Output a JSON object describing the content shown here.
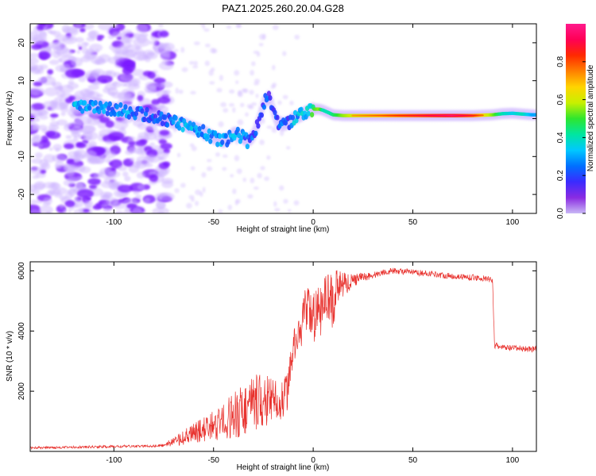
{
  "title": "PAZ1.2025.260.20.04.G28",
  "colors": {
    "snr_line": "#e8322e",
    "blob_core": "#7b1bff",
    "blob_halo": "#cbb2ff",
    "axis": "#000000",
    "colormap": [
      "#c9b8f5",
      "#8a2be2",
      "#3a2bff",
      "#0070ff",
      "#00c8ff",
      "#00e6a0",
      "#2ee62e",
      "#c8f000",
      "#ffd400",
      "#ff8000",
      "#ff2a00",
      "#ff0055",
      "#ff1a8c"
    ]
  },
  "chart_data": [
    {
      "type": "heatmap",
      "title": "",
      "xlabel": "Height of straight line (km)",
      "ylabel": "Frequency (Hz)",
      "xlim": [
        -142,
        112
      ],
      "ylim": [
        -25,
        25
      ],
      "xticks": [
        -100,
        -50,
        0,
        50,
        100
      ],
      "yticks": [
        -20,
        -10,
        0,
        10,
        20
      ],
      "grid": false,
      "colorbar": {
        "label": "Normalized spectral amplitude",
        "range": [
          0,
          1
        ],
        "ticks": [
          0.0,
          0.2,
          0.4,
          0.6,
          0.8
        ],
        "tick_labels": [
          "0.0",
          "0.2",
          "0.4",
          "0.6",
          "0.8"
        ],
        "position": "right"
      },
      "ridge": {
        "x": [
          -115,
          -105,
          -100,
          -95,
          -90,
          -85,
          -80,
          -75,
          -70,
          -65,
          -60,
          -55,
          -50,
          -45,
          -42,
          -40,
          -38,
          -35,
          -33,
          -30,
          -27,
          -25,
          -22,
          -20,
          -18,
          -15,
          -12,
          -10,
          -8,
          -6,
          -4,
          -2,
          0,
          3,
          5,
          8,
          10,
          15,
          20,
          30,
          40,
          50,
          60,
          70,
          80,
          90,
          95,
          100,
          105,
          110
        ],
        "y": [
          3,
          3,
          2.5,
          2,
          1.5,
          1,
          0.5,
          0,
          -1,
          -1.5,
          -2.5,
          -3.5,
          -5,
          -6,
          -5,
          -4,
          -4,
          -5,
          -6,
          -4.5,
          0,
          4,
          6,
          2,
          -1,
          -1.5,
          -1,
          0,
          0.5,
          1,
          1.5,
          2,
          2.5,
          2.5,
          2.2,
          1.5,
          1,
          0.8,
          0.8,
          0.8,
          0.8,
          0.8,
          0.8,
          0.8,
          0.8,
          1,
          1.3,
          1.4,
          1.2,
          1.0
        ],
        "amplitude": [
          0.3,
          0.25,
          0.25,
          0.3,
          0.25,
          0.25,
          0.2,
          0.2,
          0.25,
          0.3,
          0.3,
          0.3,
          0.25,
          0.3,
          0.25,
          0.3,
          0.25,
          0.25,
          0.25,
          0.2,
          0.2,
          0.2,
          0.2,
          0.2,
          0.2,
          0.25,
          0.2,
          0.3,
          0.3,
          0.35,
          0.3,
          0.35,
          0.5,
          0.55,
          0.4,
          0.4,
          0.45,
          0.55,
          0.6,
          0.65,
          0.7,
          0.75,
          0.8,
          0.85,
          0.75,
          0.55,
          0.4,
          0.35,
          0.4,
          0.3
        ]
      }
    },
    {
      "type": "line",
      "title": "",
      "xlabel": "Height of straight line (km)",
      "ylabel": "SNR (10 * v/v)",
      "xlim": [
        -142,
        112
      ],
      "ylim": [
        0,
        6300
      ],
      "xticks": [
        -100,
        -50,
        0,
        50,
        100
      ],
      "yticks": [
        2000,
        4000,
        6000
      ],
      "grid": false,
      "series": [
        {
          "x": [
            -142,
            -130,
            -120,
            -110,
            -100,
            -90,
            -80,
            -75,
            -70,
            -65,
            -60,
            -55,
            -50,
            -45,
            -40,
            -35,
            -30,
            -25,
            -22,
            -20,
            -18,
            -15,
            -13,
            -11,
            -10,
            -8,
            -6,
            -4,
            -2,
            0,
            2,
            4,
            6,
            8,
            10,
            12,
            14,
            16,
            18,
            20,
            25,
            30,
            35,
            40,
            45,
            50,
            55,
            60,
            65,
            70,
            75,
            80,
            85,
            88,
            90,
            91,
            92,
            95,
            100,
            105,
            110,
            112
          ],
          "y": [
            120,
            130,
            140,
            150,
            160,
            170,
            180,
            200,
            260,
            350,
            450,
            550,
            650,
            750,
            900,
            1000,
            1200,
            1300,
            1400,
            1500,
            1450,
            1400,
            1800,
            2700,
            3200,
            3700,
            3900,
            4300,
            4200,
            4000,
            4500,
            4300,
            4700,
            4800,
            4400,
            5300,
            5300,
            5400,
            5500,
            5650,
            5800,
            5850,
            5950,
            6000,
            5980,
            5950,
            5920,
            5900,
            5850,
            5820,
            5800,
            5780,
            5750,
            5720,
            5700,
            3500,
            3500,
            3450,
            3430,
            3420,
            3400,
            3400
          ],
          "noise_amplitude": [
            40,
            40,
            40,
            40,
            50,
            40,
            40,
            60,
            150,
            250,
            350,
            420,
            500,
            600,
            800,
            900,
            1000,
            900,
            800,
            700,
            600,
            650,
            700,
            600,
            500,
            600,
            700,
            800,
            900,
            900,
            700,
            900,
            1000,
            900,
            900,
            600,
            500,
            400,
            300,
            250,
            150,
            120,
            100,
            100,
            100,
            100,
            100,
            100,
            100,
            100,
            100,
            100,
            100,
            100,
            100,
            100,
            100,
            100,
            100,
            100,
            100,
            100
          ]
        }
      ]
    }
  ]
}
